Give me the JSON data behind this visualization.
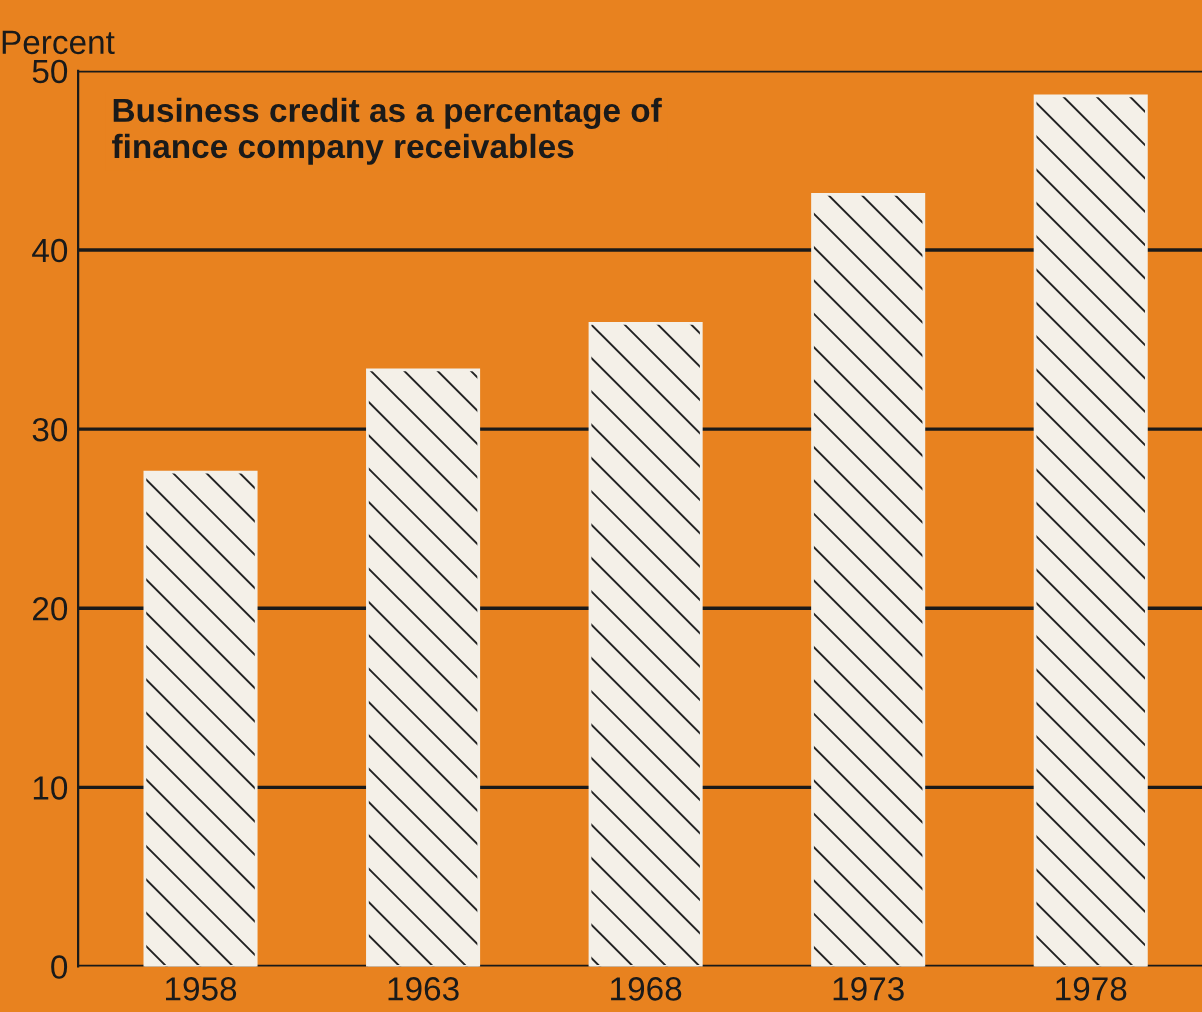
{
  "chart_data": {
    "type": "bar",
    "title": "Business credit as a percentage of\nfinance company receivables",
    "ylabel": "Percent",
    "categories": [
      "1958",
      "1963",
      "1968",
      "1973",
      "1978"
    ],
    "values": [
      27.6,
      33.3,
      35.9,
      43.1,
      48.6
    ],
    "color": "#f4f0e8",
    "ylim": [
      0,
      50
    ],
    "yticks": [
      0,
      10,
      20,
      30,
      40,
      50
    ],
    "grid": "y"
  }
}
